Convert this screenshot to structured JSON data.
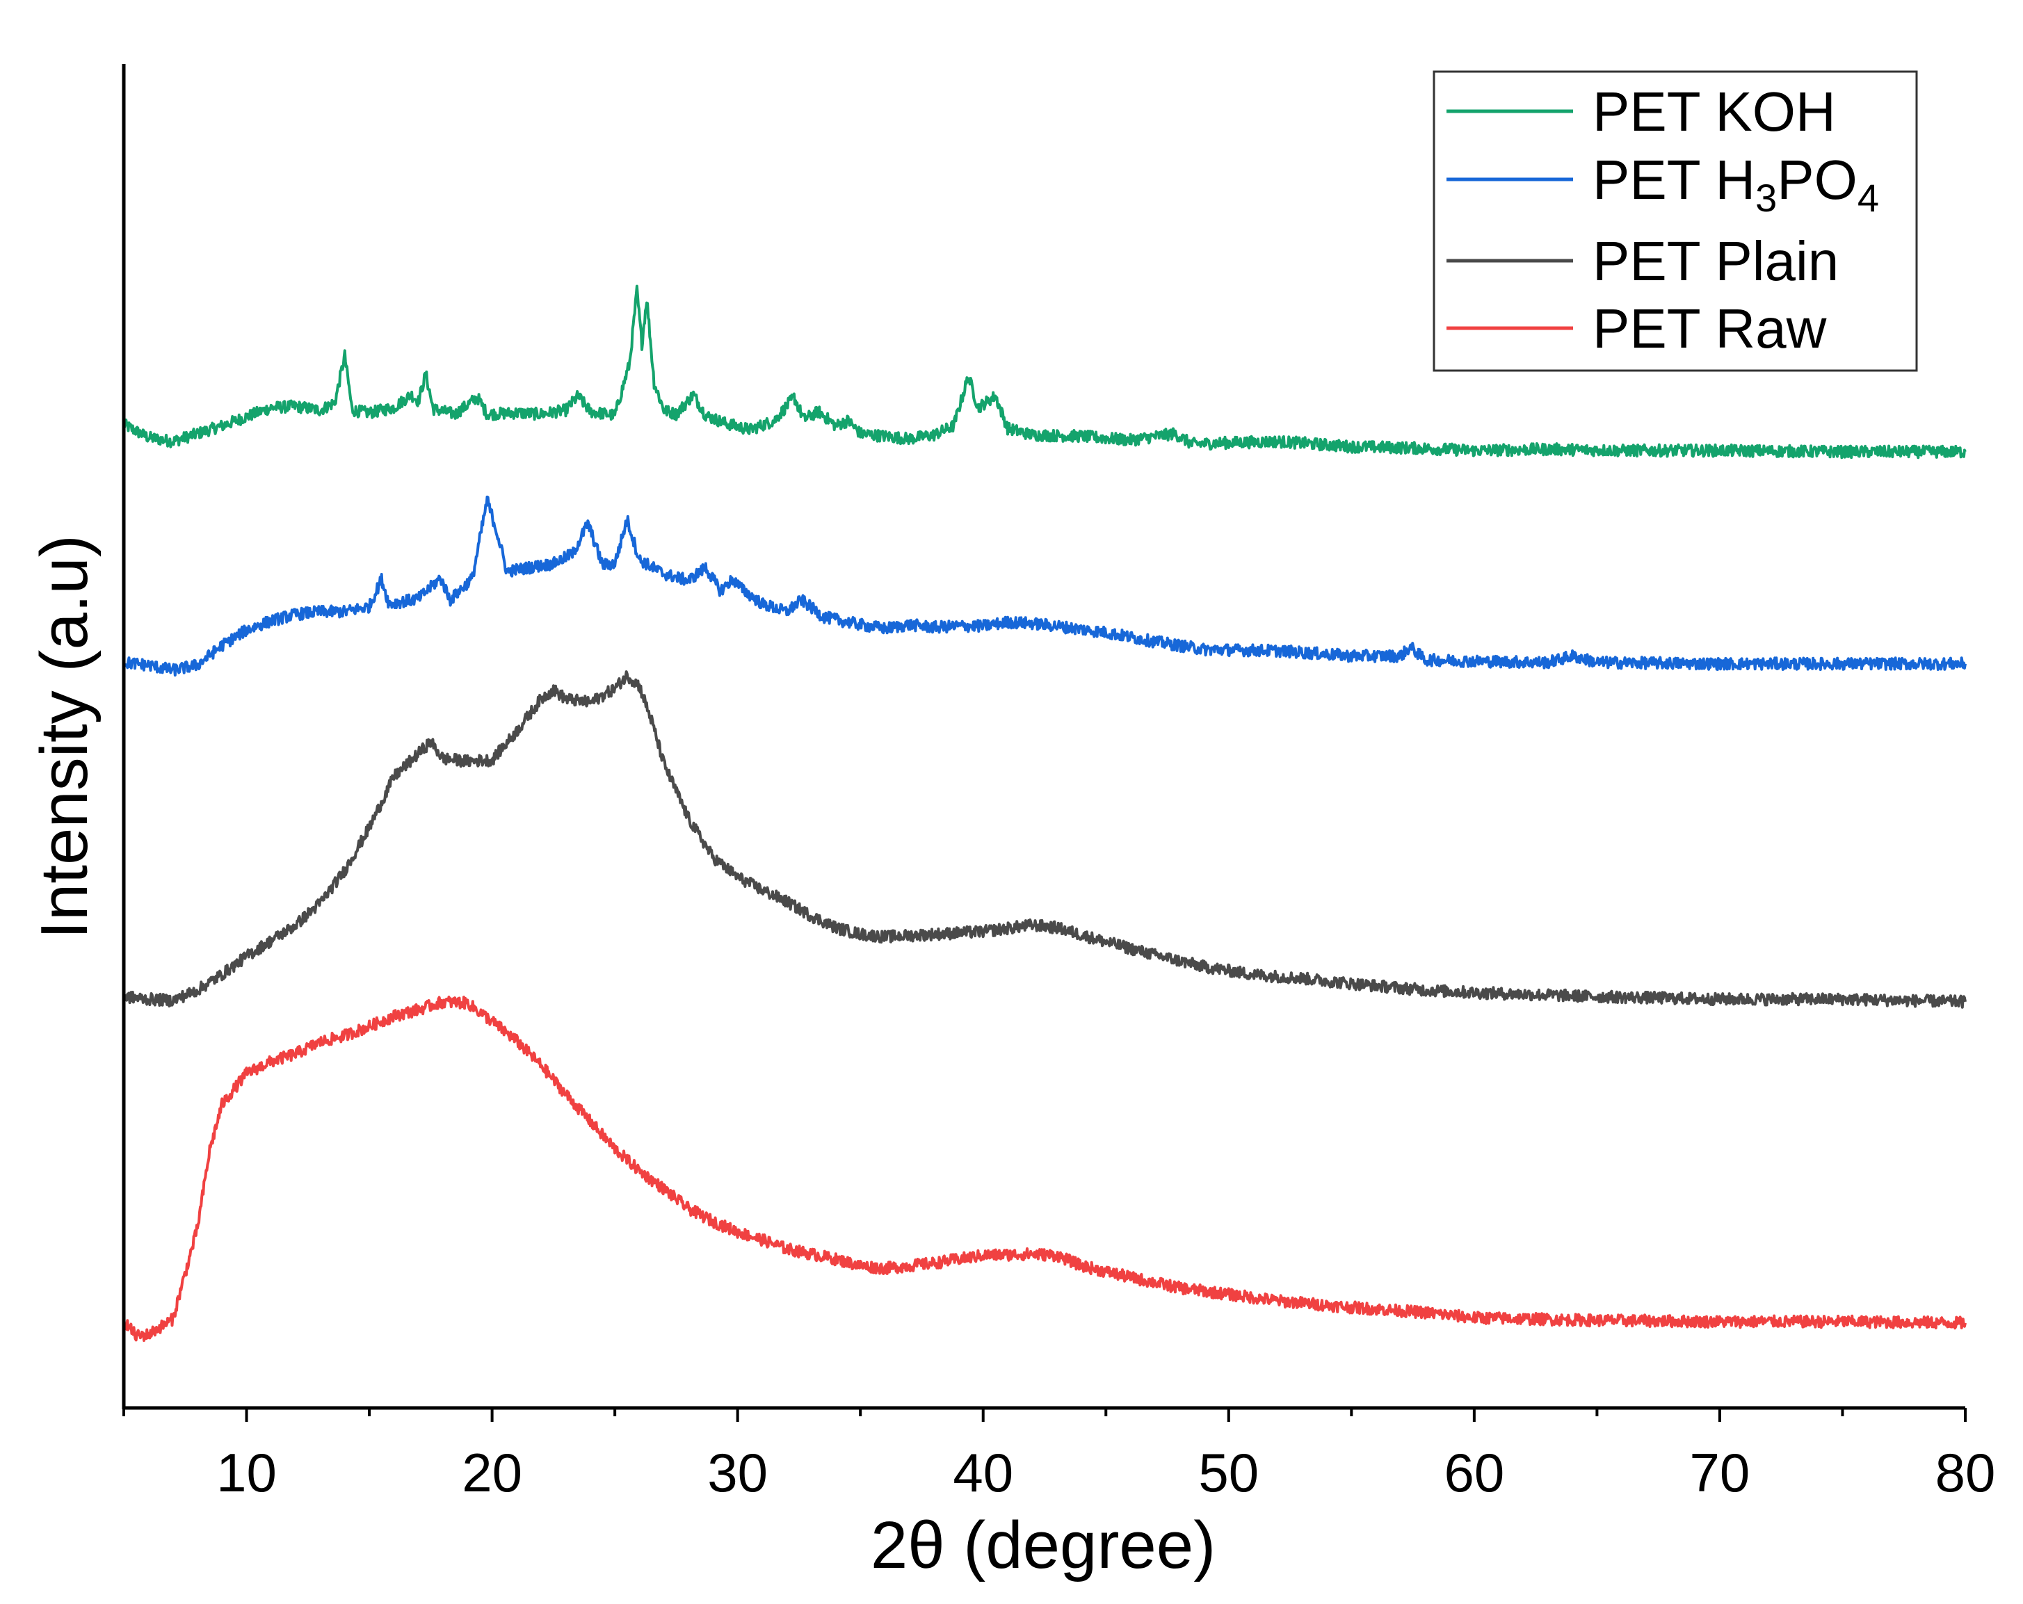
{
  "chart_data": {
    "type": "line",
    "title": "",
    "xlabel": "2θ (degree)",
    "ylabel": "Intensity (a.u)",
    "xlim": [
      5,
      80
    ],
    "ylim": [
      0,
      100
    ],
    "x_ticks": [
      10,
      20,
      30,
      40,
      50,
      60,
      70,
      80
    ],
    "x_tick_labels": [
      "10",
      "20",
      "30",
      "40",
      "50",
      "60",
      "70",
      "80"
    ],
    "y_ticks_shown": false,
    "legend_position": "top-right",
    "series": [
      {
        "name": "PET KOH",
        "legend_base": "PET KOH",
        "color": "#14a36c",
        "points": [
          [
            5,
            74.3
          ],
          [
            6,
            73.3
          ],
          [
            7,
            73.0
          ],
          [
            8,
            73.6
          ],
          [
            9,
            74.2
          ],
          [
            10,
            74.9
          ],
          [
            11,
            75.6
          ],
          [
            12,
            75.7
          ],
          [
            13,
            75.4
          ],
          [
            13.6,
            76.0
          ],
          [
            14.0,
            79.6
          ],
          [
            14.3,
            75.4
          ],
          [
            15,
            75.2
          ],
          [
            16,
            75.6
          ],
          [
            16.7,
            76.6
          ],
          [
            17.0,
            76.1
          ],
          [
            17.3,
            78.2
          ],
          [
            17.6,
            75.5
          ],
          [
            18.5,
            75.1
          ],
          [
            19.4,
            76.4
          ],
          [
            19.8,
            75.1
          ],
          [
            21,
            75.2
          ],
          [
            22,
            75.1
          ],
          [
            23,
            75.4
          ],
          [
            23.5,
            76.5
          ],
          [
            24,
            75.3
          ],
          [
            25,
            75.0
          ],
          [
            25.6,
            79.0
          ],
          [
            25.9,
            84.6
          ],
          [
            26.1,
            80.5
          ],
          [
            26.3,
            84.0
          ],
          [
            26.6,
            77.5
          ],
          [
            27,
            75.4
          ],
          [
            27.5,
            75.1
          ],
          [
            28.2,
            76.6
          ],
          [
            28.7,
            75.0
          ],
          [
            29.5,
            74.4
          ],
          [
            30.5,
            73.9
          ],
          [
            31.5,
            74.6
          ],
          [
            32.3,
            76.4
          ],
          [
            32.7,
            74.7
          ],
          [
            33.3,
            75.3
          ],
          [
            34,
            74.2
          ],
          [
            34.5,
            74.6
          ],
          [
            35,
            73.6
          ],
          [
            36,
            73.4
          ],
          [
            37,
            73.2
          ],
          [
            38,
            73.5
          ],
          [
            38.8,
            74.2
          ],
          [
            39.4,
            78.0
          ],
          [
            39.8,
            75.6
          ],
          [
            40.5,
            76.5
          ],
          [
            41,
            74.0
          ],
          [
            42,
            73.5
          ],
          [
            44,
            73.4
          ],
          [
            46,
            73.1
          ],
          [
            47.8,
            73.6
          ],
          [
            48.5,
            72.8
          ],
          [
            50,
            72.9
          ],
          [
            52,
            73.0
          ],
          [
            55,
            72.6
          ],
          [
            57.5,
            72.5
          ],
          [
            60,
            72.3
          ],
          [
            63,
            72.4
          ],
          [
            66,
            72.3
          ],
          [
            70,
            72.3
          ],
          [
            75,
            72.2
          ],
          [
            80,
            72.2
          ]
        ]
      },
      {
        "name": "PET H3PO4",
        "legend_base": "PET H",
        "legend_sub1": "3",
        "legend_mid": "PO",
        "legend_sub2": "4",
        "color": "#1767d8",
        "points": [
          [
            5,
            56.0
          ],
          [
            6,
            55.8
          ],
          [
            7,
            55.4
          ],
          [
            8,
            55.8
          ],
          [
            9,
            57.3
          ],
          [
            10,
            58.5
          ],
          [
            11,
            59.2
          ],
          [
            12,
            59.7
          ],
          [
            13,
            59.9
          ],
          [
            14,
            59.9
          ],
          [
            15,
            60.3
          ],
          [
            15.5,
            62.4
          ],
          [
            15.8,
            60.5
          ],
          [
            17,
            60.9
          ],
          [
            17.9,
            62.5
          ],
          [
            18.3,
            60.8
          ],
          [
            19.2,
            62.5
          ],
          [
            19.8,
            68.5
          ],
          [
            20.2,
            66.0
          ],
          [
            20.6,
            63.0
          ],
          [
            21.5,
            63.3
          ],
          [
            22.5,
            63.6
          ],
          [
            23.3,
            64.4
          ],
          [
            23.9,
            66.7
          ],
          [
            24.5,
            63.5
          ],
          [
            25.0,
            63.6
          ],
          [
            25.5,
            67.0
          ],
          [
            26.0,
            63.9
          ],
          [
            27,
            62.8
          ],
          [
            28,
            62.3
          ],
          [
            28.7,
            63.3
          ],
          [
            29.3,
            61.5
          ],
          [
            29.8,
            62.4
          ],
          [
            30.2,
            61.6
          ],
          [
            31,
            60.5
          ],
          [
            32,
            59.9
          ],
          [
            32.6,
            60.8
          ],
          [
            33.5,
            59.5
          ],
          [
            35,
            58.9
          ],
          [
            36,
            58.6
          ],
          [
            37,
            58.9
          ],
          [
            38,
            58.7
          ],
          [
            39,
            58.8
          ],
          [
            40,
            58.8
          ],
          [
            41,
            59.1
          ],
          [
            42,
            59.0
          ],
          [
            43,
            58.8
          ],
          [
            45,
            58.3
          ],
          [
            47,
            57.6
          ],
          [
            49,
            57.0
          ],
          [
            52,
            56.9
          ],
          [
            55,
            56.5
          ],
          [
            57,
            56.5
          ],
          [
            57.4,
            57.2
          ],
          [
            58,
            56.2
          ],
          [
            60,
            56.1
          ],
          [
            63,
            56.0
          ],
          [
            64,
            56.5
          ],
          [
            65,
            56.0
          ],
          [
            70,
            55.9
          ],
          [
            75,
            55.9
          ],
          [
            80,
            55.9
          ]
        ]
      },
      {
        "name": "PET Plain",
        "legend_base": "PET Plain",
        "color": "#4a4a4a",
        "points": [
          [
            5,
            30.3
          ],
          [
            6,
            30.1
          ],
          [
            7,
            30.0
          ],
          [
            8,
            30.8
          ],
          [
            9,
            32.0
          ],
          [
            10,
            33.4
          ],
          [
            11,
            34.6
          ],
          [
            12,
            35.8
          ],
          [
            13,
            37.5
          ],
          [
            14,
            40.0
          ],
          [
            15,
            43.3
          ],
          [
            16,
            47.2
          ],
          [
            17,
            49.0
          ],
          [
            17.5,
            49.9
          ],
          [
            18,
            48.6
          ],
          [
            19,
            48.4
          ],
          [
            20,
            48.5
          ],
          [
            21,
            50.7
          ],
          [
            22,
            53.2
          ],
          [
            22.5,
            53.9
          ],
          [
            23,
            53.2
          ],
          [
            24,
            52.9
          ],
          [
            25,
            54.0
          ],
          [
            25.5,
            55.0
          ],
          [
            26,
            54.2
          ],
          [
            26.5,
            51.5
          ],
          [
            27,
            48.2
          ],
          [
            28,
            44.0
          ],
          [
            29,
            41.0
          ],
          [
            30,
            39.5
          ],
          [
            31,
            38.5
          ],
          [
            32,
            37.6
          ],
          [
            33,
            36.5
          ],
          [
            34,
            35.6
          ],
          [
            35,
            35.1
          ],
          [
            36,
            34.9
          ],
          [
            38,
            35.1
          ],
          [
            40,
            35.3
          ],
          [
            42,
            35.8
          ],
          [
            43,
            35.6
          ],
          [
            45,
            34.5
          ],
          [
            47,
            33.5
          ],
          [
            49,
            32.6
          ],
          [
            51,
            32.0
          ],
          [
            53,
            31.7
          ],
          [
            55,
            31.3
          ],
          [
            58,
            30.8
          ],
          [
            60,
            30.6
          ],
          [
            65,
            30.3
          ],
          [
            70,
            30.1
          ],
          [
            75,
            30.1
          ],
          [
            80,
            29.9
          ]
        ]
      },
      {
        "name": "PET Raw",
        "legend_base": "PET Raw",
        "color": "#f04141",
        "points": [
          [
            5,
            5.4
          ],
          [
            5.5,
            4.2
          ],
          [
            6,
            4.3
          ],
          [
            7,
            5.5
          ],
          [
            8,
            12.5
          ],
          [
            8.5,
            18.5
          ],
          [
            9,
            22.0
          ],
          [
            10,
            24.4
          ],
          [
            11,
            25.3
          ],
          [
            12,
            25.9
          ],
          [
            13,
            26.8
          ],
          [
            14,
            27.3
          ],
          [
            15,
            28.0
          ],
          [
            16,
            28.8
          ],
          [
            17,
            29.3
          ],
          [
            18,
            29.9
          ],
          [
            19,
            29.8
          ],
          [
            20,
            28.4
          ],
          [
            21,
            26.9
          ],
          [
            22,
            25.0
          ],
          [
            23,
            22.8
          ],
          [
            24,
            20.7
          ],
          [
            25,
            18.6
          ],
          [
            26,
            16.9
          ],
          [
            27,
            15.5
          ],
          [
            28,
            14.0
          ],
          [
            29,
            13.0
          ],
          [
            30,
            12.2
          ],
          [
            31,
            11.6
          ],
          [
            32,
            10.9
          ],
          [
            33,
            10.5
          ],
          [
            34,
            10.1
          ],
          [
            35,
            9.6
          ],
          [
            36,
            9.4
          ],
          [
            37,
            9.6
          ],
          [
            38,
            9.8
          ],
          [
            40,
            10.4
          ],
          [
            42,
            10.5
          ],
          [
            43,
            10.4
          ],
          [
            44,
            9.6
          ],
          [
            46,
            8.7
          ],
          [
            48,
            7.9
          ],
          [
            50,
            7.4
          ],
          [
            52,
            6.9
          ],
          [
            55,
            6.4
          ],
          [
            58,
            6.0
          ],
          [
            60,
            5.6
          ],
          [
            65,
            5.4
          ],
          [
            70,
            5.3
          ],
          [
            75,
            5.3
          ],
          [
            80,
            5.2
          ]
        ]
      }
    ]
  }
}
